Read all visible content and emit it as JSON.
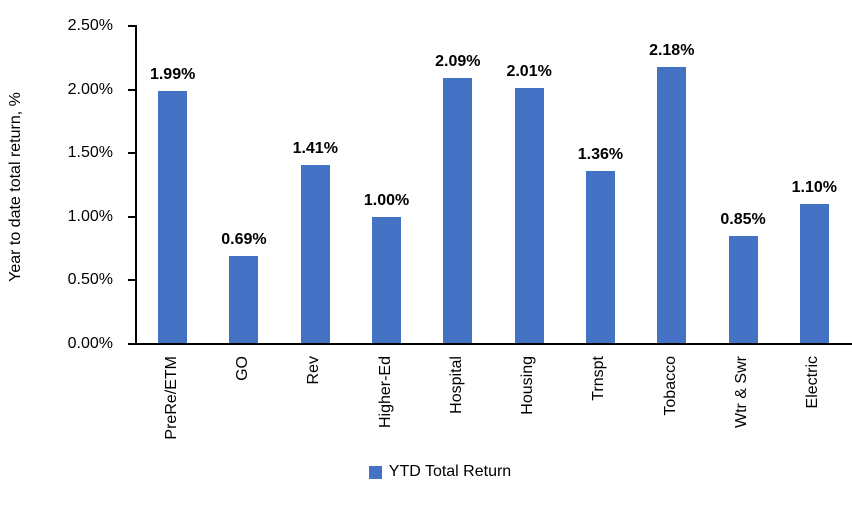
{
  "chart_data": {
    "type": "bar",
    "categories": [
      "PreRe/ETM",
      "GO",
      "Rev",
      "Higher-Ed",
      "Hospital",
      "Housing",
      "Trnspt",
      "Tobacco",
      "Wtr & Swr",
      "Electric"
    ],
    "values": [
      1.99,
      0.69,
      1.41,
      1.0,
      2.09,
      2.01,
      1.36,
      2.18,
      0.85,
      1.1
    ],
    "value_labels": [
      "1.99%",
      "0.69%",
      "1.41%",
      "1.00%",
      "2.09%",
      "2.01%",
      "1.36%",
      "2.18%",
      "0.85%",
      "1.10%"
    ],
    "title": "",
    "xlabel": "",
    "ylabel": "Year to date total return, %",
    "ylim": [
      0,
      2.5
    ],
    "ytick_labels": [
      "0.00%",
      "0.50%",
      "1.00%",
      "1.50%",
      "2.00%",
      "2.50%"
    ],
    "ytick_values": [
      0,
      0.5,
      1.0,
      1.5,
      2.0,
      2.5
    ],
    "grid": false,
    "legend_position": "bottom",
    "legend": {
      "label": "YTD Total Return"
    },
    "colors": {
      "bar": "#4472C4",
      "axis": "#000000",
      "text": "#000000"
    }
  }
}
